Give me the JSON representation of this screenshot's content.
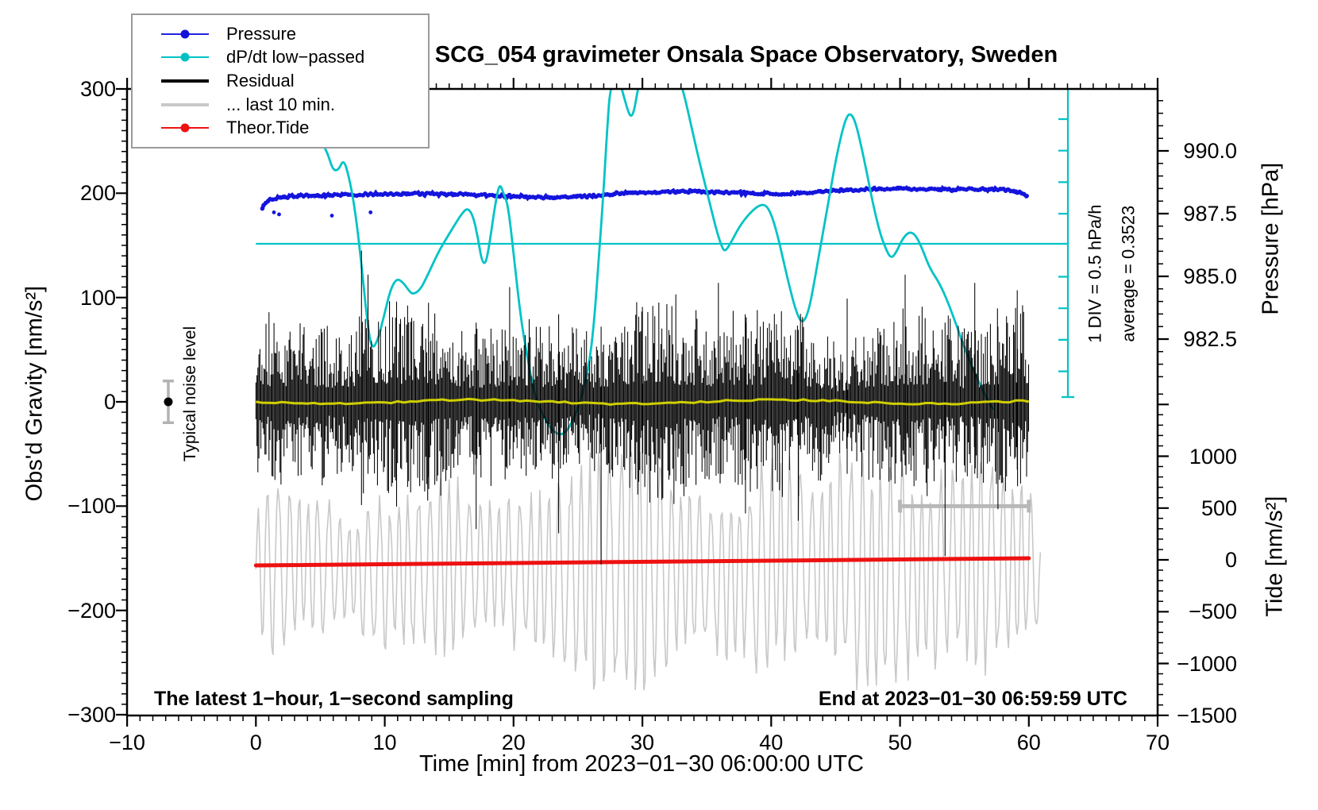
{
  "title": "SCG_054 gravimeter Onsala Space Observatory, Sweden",
  "footer_left": "The latest 1−hour, 1−second sampling",
  "footer_right": "End at 2023−01−30 06:59:59 UTC",
  "legend": {
    "items": [
      {
        "label": "Pressure",
        "color": "#2222e0",
        "dot_color": "#1111d8",
        "thickness": 2,
        "dot": true
      },
      {
        "label": "dP/dt low−passed",
        "color": "#00c3c6",
        "dot_color": "#00bfc2",
        "thickness": 2,
        "dot": true
      },
      {
        "label": "Residual",
        "color": "#000000",
        "dot_color": "#000000",
        "thickness": 4,
        "dot": false
      },
      {
        "label": "... last 10 min.",
        "color": "#c8c8c8",
        "dot_color": "#c8c8c8",
        "thickness": 4,
        "dot": false
      },
      {
        "label": "Theor.Tide",
        "color": "#ee1111",
        "dot_color": "#ee1111",
        "thickness": 2,
        "dot": true
      }
    ]
  },
  "annotations": {
    "div_note": "1 DIV = 0.5 hPa/h",
    "average_note": "average = 0.3523",
    "noise_label": "Typical noise level"
  },
  "chart_data": {
    "type": "line",
    "title": "SCG_054 gravimeter Onsala Space Observatory, Sweden",
    "grid": false,
    "legend_position": "top-left",
    "x_axis": {
      "label": "Time [min] from 2023−01−30 06:00:00 UTC",
      "range": [
        -10,
        70
      ],
      "tick_values": [
        -10,
        0,
        10,
        20,
        30,
        40,
        50,
        60,
        70
      ],
      "tick_labels": [
        "−10",
        "0",
        "10",
        "20",
        "30",
        "40",
        "50",
        "60",
        "70"
      ],
      "minor_step": 1
    },
    "left_axis": {
      "label": "Obs'd Gravity [nm/s²]",
      "range": [
        -300,
        300
      ],
      "tick_values": [
        300,
        200,
        100,
        0,
        -100,
        -200,
        -300
      ],
      "tick_labels": [
        "300",
        "200",
        "100",
        "0",
        "−100",
        "−200",
        "−300"
      ],
      "minor_step": 10
    },
    "pressure_axis": {
      "label": "Pressure [hPa]",
      "tick_values": [
        990.0,
        987.5,
        985.0,
        982.5
      ],
      "tick_labels": [
        "990.0",
        "987.5",
        "985.0",
        "982.5"
      ],
      "minor_step": 0.5
    },
    "tide_axis": {
      "label": "Tide [nm/s²]",
      "tick_values": [
        1000,
        500,
        0,
        -500,
        -1000,
        -1500
      ],
      "tick_labels": [
        "1000",
        "500",
        "0",
        "−500",
        "−1000",
        "−1500"
      ],
      "minor_step": 100
    },
    "dpdt_scale": {
      "note": "1 DIV = 0.5 hPa/h",
      "average_hpa_per_h": 0.3523,
      "zero_line_dpdt": 0,
      "ruler_divisions": 10
    },
    "noise_marker": {
      "label": "Typical noise level",
      "t_min": -6.8,
      "value_nms2": 0,
      "error_nms2": 20
    },
    "last10_bracket": {
      "t_start_min": 50,
      "t_end_min": 60,
      "gravity_level_nms2": -100
    },
    "series": [
      {
        "name": "Pressure",
        "unit": "hPa",
        "color": "#1414dd",
        "style": "thick-dotted",
        "points": [
          [
            0.5,
            987.72
          ],
          [
            1.0,
            988.04
          ],
          [
            2.0,
            988.16
          ],
          [
            3.5,
            988.2
          ],
          [
            5.0,
            988.23
          ],
          [
            8.0,
            988.26
          ],
          [
            12.0,
            988.29
          ],
          [
            16.0,
            988.26
          ],
          [
            20.0,
            988.2
          ],
          [
            23.0,
            988.13
          ],
          [
            26.0,
            988.2
          ],
          [
            28.0,
            988.29
          ],
          [
            31.0,
            988.35
          ],
          [
            34.0,
            988.39
          ],
          [
            36.0,
            988.35
          ],
          [
            38.0,
            988.32
          ],
          [
            40.0,
            988.29
          ],
          [
            42.0,
            988.32
          ],
          [
            44.0,
            988.39
          ],
          [
            46.0,
            988.45
          ],
          [
            48.0,
            988.48
          ],
          [
            50.0,
            988.51
          ],
          [
            52.0,
            988.48
          ],
          [
            54.0,
            988.45
          ],
          [
            56.0,
            988.48
          ],
          [
            58.0,
            988.45
          ],
          [
            59.3,
            988.35
          ],
          [
            60.0,
            988.2
          ]
        ],
        "outlier_points": [
          [
            1.4,
            987.55
          ],
          [
            1.8,
            987.47
          ],
          [
            5.9,
            987.42
          ],
          [
            8.9,
            987.55
          ]
        ]
      },
      {
        "name": "dP/dt low−passed",
        "unit": "hPa/h",
        "color": "#00c3c6",
        "style": "solid",
        "average": 0.3523,
        "points": [
          [
            3.74,
            2.4
          ],
          [
            4.17,
            2.02
          ],
          [
            4.79,
            1.71
          ],
          [
            5.53,
            1.48
          ],
          [
            5.96,
            1.18
          ],
          [
            6.39,
            1.17
          ],
          [
            6.82,
            1.36
          ],
          [
            7.25,
            1.05
          ],
          [
            7.68,
            0.57
          ],
          [
            8.18,
            -0.29
          ],
          [
            8.61,
            -1.18
          ],
          [
            8.98,
            -1.7
          ],
          [
            9.47,
            -1.54
          ],
          [
            9.97,
            -1.13
          ],
          [
            10.46,
            -0.72
          ],
          [
            10.95,
            -0.55
          ],
          [
            11.44,
            -0.62
          ],
          [
            11.88,
            -0.75
          ],
          [
            12.18,
            -0.81
          ],
          [
            12.74,
            -0.74
          ],
          [
            13.29,
            -0.52
          ],
          [
            13.85,
            -0.27
          ],
          [
            14.28,
            -0.09
          ],
          [
            14.83,
            0.1
          ],
          [
            15.39,
            0.29
          ],
          [
            15.94,
            0.47
          ],
          [
            16.44,
            0.58
          ],
          [
            16.87,
            0.44
          ],
          [
            17.24,
            0.09
          ],
          [
            17.55,
            -0.29
          ],
          [
            17.85,
            -0.32
          ],
          [
            18.16,
            0.03
          ],
          [
            18.53,
            0.57
          ],
          [
            18.9,
            0.98
          ],
          [
            19.21,
            0.81
          ],
          [
            19.58,
            0.62
          ],
          [
            20.07,
            -0.29
          ],
          [
            20.56,
            -1.18
          ],
          [
            21.06,
            -1.81
          ],
          [
            21.67,
            -2.45
          ],
          [
            22.41,
            -2.8
          ],
          [
            23.15,
            -3.02
          ],
          [
            23.89,
            -3.06
          ],
          [
            24.63,
            -2.83
          ],
          [
            25.37,
            -2.39
          ],
          [
            25.86,
            -1.94
          ],
          [
            26.23,
            -1.31
          ],
          [
            26.6,
            -0.29
          ],
          [
            26.97,
            0.79
          ],
          [
            27.28,
            1.87
          ],
          [
            27.53,
            2.56
          ],
          [
            28.2,
            2.63
          ],
          [
            28.57,
            2.35
          ],
          [
            28.88,
            2.12
          ],
          [
            29.13,
            2.02
          ],
          [
            29.38,
            2.14
          ],
          [
            29.62,
            2.44
          ],
          [
            29.87,
            2.63
          ],
          [
            30.67,
            2.82
          ],
          [
            31.9,
            2.82
          ],
          [
            32.89,
            2.63
          ],
          [
            33.26,
            2.37
          ],
          [
            33.75,
            1.93
          ],
          [
            34.37,
            1.36
          ],
          [
            35.11,
            0.75
          ],
          [
            35.72,
            0.24
          ],
          [
            36.15,
            -0.04
          ],
          [
            36.4,
            -0.13
          ],
          [
            36.83,
            0.0
          ],
          [
            37.51,
            0.27
          ],
          [
            38.25,
            0.47
          ],
          [
            38.99,
            0.61
          ],
          [
            39.55,
            0.63
          ],
          [
            39.98,
            0.49
          ],
          [
            40.47,
            0.16
          ],
          [
            40.96,
            -0.28
          ],
          [
            41.52,
            -0.77
          ],
          [
            42.01,
            -1.13
          ],
          [
            42.44,
            -1.28
          ],
          [
            42.93,
            -1.07
          ],
          [
            43.43,
            -0.51
          ],
          [
            43.98,
            0.14
          ],
          [
            44.47,
            0.7
          ],
          [
            44.97,
            1.29
          ],
          [
            45.46,
            1.76
          ],
          [
            45.83,
            2.02
          ],
          [
            46.14,
            2.09
          ],
          [
            46.51,
            1.97
          ],
          [
            46.94,
            1.61
          ],
          [
            47.43,
            1.13
          ],
          [
            47.92,
            0.62
          ],
          [
            48.42,
            0.19
          ],
          [
            48.85,
            -0.06
          ],
          [
            49.28,
            -0.24
          ],
          [
            49.71,
            -0.14
          ],
          [
            50.21,
            0.09
          ],
          [
            50.76,
            0.2
          ],
          [
            51.25,
            0.13
          ],
          [
            51.75,
            -0.09
          ],
          [
            52.3,
            -0.39
          ],
          [
            53.04,
            -0.62
          ],
          [
            53.72,
            -0.93
          ],
          [
            54.4,
            -1.31
          ],
          [
            55.07,
            -1.7
          ],
          [
            55.81,
            -2.07
          ],
          [
            56.55,
            -2.4
          ],
          [
            57.23,
            -2.65
          ]
        ]
      },
      {
        "name": "Residual",
        "unit": "nm/s²",
        "color": "#000000",
        "style": "noise-band",
        "mean": 0,
        "typical_amplitude": 60,
        "spikes": [
          [
            8.2,
            145,
            99
          ],
          [
            8.7,
            122,
            69
          ],
          [
            13.4,
            95,
            72
          ],
          [
            17.1,
            76,
            122
          ],
          [
            19.7,
            110,
            61
          ],
          [
            23.5,
            84,
            126
          ],
          [
            26.8,
            72,
            156
          ],
          [
            30.0,
            91,
            69
          ],
          [
            32.6,
            103,
            76
          ],
          [
            35.9,
            114,
            69
          ],
          [
            38.0,
            76,
            107
          ],
          [
            42.1,
            69,
            114
          ],
          [
            45.9,
            99,
            69
          ],
          [
            50.4,
            122,
            61
          ],
          [
            53.5,
            76,
            148
          ],
          [
            55.8,
            114,
            69
          ],
          [
            57.6,
            72,
            103
          ],
          [
            59.1,
            107,
            65
          ]
        ]
      },
      {
        "name": "Residual smoothed (yellow overlay)",
        "unit": "nm/s²",
        "color": "#cfcf00",
        "style": "solid",
        "level": 0
      },
      {
        "name": "... last 10 min.",
        "unit": "nm/s² (tide axis)",
        "color": "#c8c8c8",
        "style": "oscillation",
        "center": -90,
        "period_min": 0.78,
        "base_amplitude": 280,
        "packets": [
          [
            1.7,
            560
          ],
          [
            5.1,
            380
          ],
          [
            9.1,
            470
          ],
          [
            12.2,
            420
          ],
          [
            15.0,
            460
          ],
          [
            17.7,
            300
          ],
          [
            20.5,
            370
          ],
          [
            23.3,
            460
          ],
          [
            26.0,
            780
          ],
          [
            28.8,
            880
          ],
          [
            31.3,
            730
          ],
          [
            34.0,
            340
          ],
          [
            36.5,
            420
          ],
          [
            39.3,
            650
          ],
          [
            42.1,
            570
          ],
          [
            44.9,
            540
          ],
          [
            47.3,
            680
          ],
          [
            49.8,
            700
          ],
          [
            52.6,
            460
          ],
          [
            55.0,
            420
          ],
          [
            56.9,
            610
          ],
          [
            59.6,
            430
          ]
        ]
      },
      {
        "name": "Theor.Tide",
        "unit": "nm/s²",
        "color": "#ee1111",
        "style": "thick",
        "points": [
          [
            0,
            -54
          ],
          [
            60,
            15
          ]
        ]
      }
    ]
  }
}
